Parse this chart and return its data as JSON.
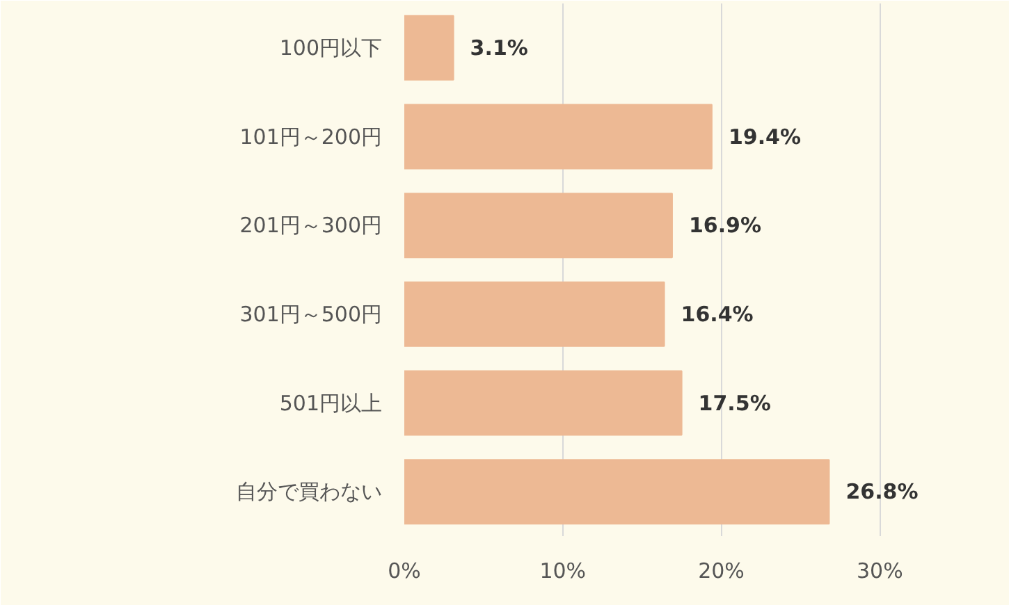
{
  "chart_data": {
    "type": "bar",
    "orientation": "horizontal",
    "categories": [
      "100円以下",
      "101円～200円",
      "201円～300円",
      "301円～500円",
      "501円以上",
      "自分で買わない"
    ],
    "values": [
      3.1,
      19.4,
      16.9,
      16.4,
      17.5,
      26.8
    ],
    "value_labels": [
      "3.1%",
      "19.4%",
      "16.9%",
      "16.4%",
      "17.5%",
      "26.8%"
    ],
    "color": "#edb994",
    "xlim": [
      0,
      36
    ],
    "xticks": [
      {
        "value": 0,
        "label": "0%"
      },
      {
        "value": 10,
        "label": "10%"
      },
      {
        "value": 20,
        "label": "20%"
      },
      {
        "value": 30,
        "label": "30%"
      }
    ],
    "grid": "x"
  }
}
